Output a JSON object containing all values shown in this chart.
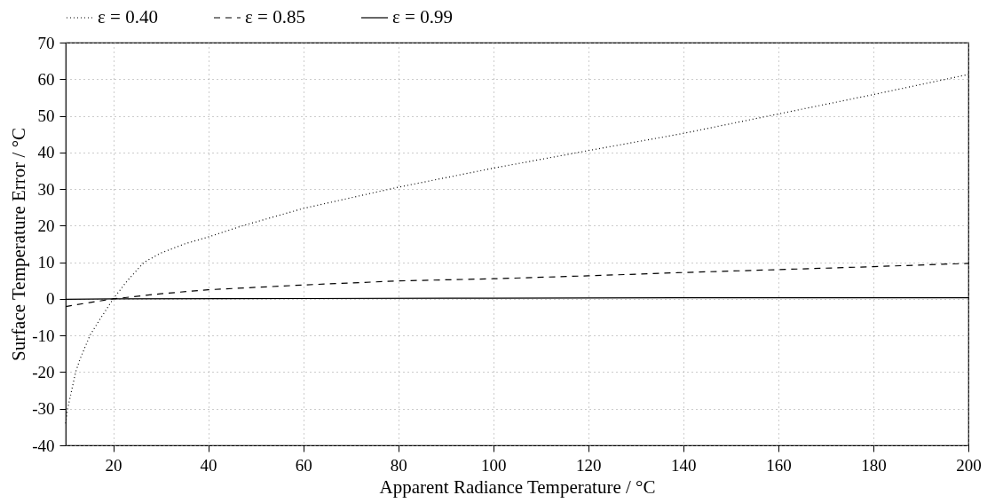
{
  "chart_data": {
    "type": "line",
    "xlabel": "Apparent Radiance Temperature / °C",
    "ylabel": "Surface Temperature Error / °C",
    "xlim": [
      10,
      200
    ],
    "ylim": [
      -40,
      70
    ],
    "xticks": [
      20,
      40,
      60,
      80,
      100,
      120,
      140,
      160,
      180,
      200
    ],
    "yticks": [
      -40,
      -30,
      -20,
      -10,
      0,
      10,
      20,
      30,
      40,
      50,
      60,
      70
    ],
    "grid": true,
    "legend": "top",
    "marker": "none",
    "series": [
      {
        "name": "ε = 0.40",
        "color": "#000000",
        "line_style": "dotted",
        "x": [
          10,
          10.4,
          11,
          12.1,
          13,
          15.1,
          17,
          20,
          23,
          26.5,
          30,
          35,
          40,
          47.3,
          60,
          80,
          100,
          120,
          140,
          160,
          180,
          200
        ],
        "values": [
          -34,
          -30,
          -26.5,
          -20,
          -16.5,
          -10,
          -6,
          0,
          5,
          10,
          12.5,
          15,
          16.9,
          20,
          24.7,
          30.5,
          35.7,
          40.5,
          45.2,
          50.5,
          55.8,
          61.3
        ]
      },
      {
        "name": "ε = 0.85",
        "color": "#000000",
        "line_style": "dashed",
        "x": [
          10,
          15,
          20,
          30,
          40,
          60,
          80,
          100,
          120,
          140,
          160,
          180,
          200
        ],
        "values": [
          -2.1,
          -1,
          0,
          1.4,
          2.5,
          3.8,
          4.9,
          5.5,
          6.3,
          7.2,
          8,
          8.8,
          9.7
        ]
      },
      {
        "name": "ε = 0.99",
        "color": "#000000",
        "line_style": "solid",
        "x": [
          10,
          20,
          60,
          100,
          140,
          200
        ],
        "values": [
          -0.1,
          0,
          0.1,
          0.2,
          0.3,
          0.3
        ]
      }
    ]
  }
}
